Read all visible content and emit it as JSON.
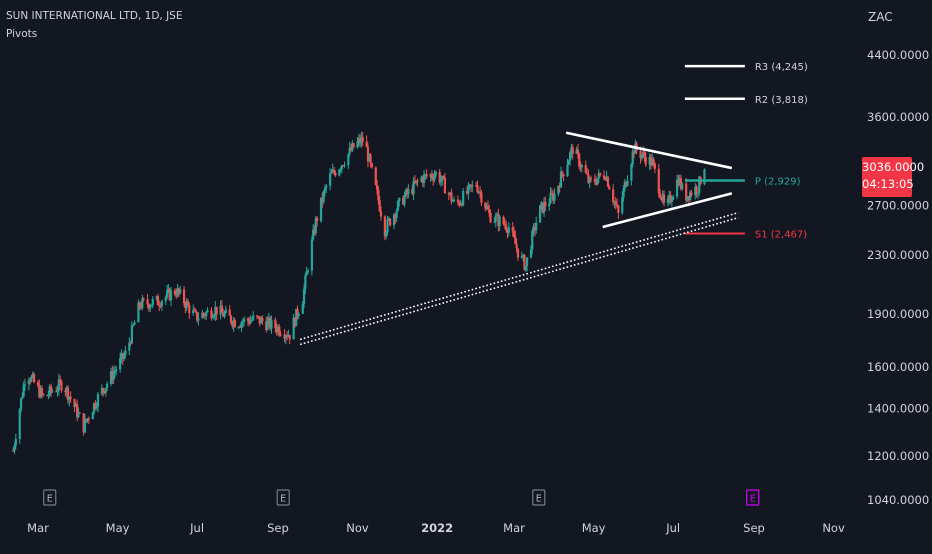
{
  "header": {
    "symbol_title": "SUN INTERNATIONAL LTD, 1D, JSE",
    "indicator": "Pivots",
    "currency": "ZAC"
  },
  "price_badge": {
    "price": "3036.0000",
    "countdown": "04:13:05",
    "color": "#f23645"
  },
  "colors": {
    "background": "#131722",
    "up": "#26a69a",
    "down": "#ef5350",
    "pivot": "#26a69a",
    "support": "#f23645",
    "resistance": "#ffffff",
    "trendline": "#ffffff",
    "earnings_marker": "#787b86",
    "earnings_marker_future": "#d500f9"
  },
  "chart_data": {
    "type": "candlestick",
    "title": "SUN INTERNATIONAL LTD, 1D, JSE",
    "indicator": "Pivots",
    "y_axis": {
      "unit": "ZAC",
      "scale": "log",
      "ticks": [
        "4400.0000",
        "3600.0000",
        "2700.0000",
        "2300.0000",
        "1900.0000",
        "1600.0000",
        "1400.0000",
        "1200.0000",
        "1040.0000"
      ],
      "tick_values": [
        4400,
        3600,
        2700,
        2300,
        1900,
        1600,
        1400,
        1200,
        1040
      ],
      "range": [
        990,
        5000
      ]
    },
    "x_axis": {
      "ticks": [
        "Mar",
        "May",
        "Jul",
        "Sep",
        "Nov",
        "2022",
        "Mar",
        "May",
        "Jul",
        "Sep",
        "Nov"
      ],
      "tick_dates": [
        "2021-03-01",
        "2021-05-01",
        "2021-07-01",
        "2021-09-01",
        "2021-11-01",
        "2022-01-01",
        "2022-03-01",
        "2022-05-01",
        "2022-07-01",
        "2022-09-01",
        "2022-11-01"
      ],
      "range": [
        "2021-02-10",
        "2022-12-10"
      ]
    },
    "series": [
      {
        "name": "",
        "anchors": [
          [
            "2021-02-10",
            1220
          ],
          [
            "2021-02-20",
            1580
          ],
          [
            "2021-03-05",
            1450
          ],
          [
            "2021-03-20",
            1520
          ],
          [
            "2021-04-05",
            1320
          ],
          [
            "2021-04-15",
            1440
          ],
          [
            "2021-04-25",
            1540
          ],
          [
            "2021-05-08",
            1680
          ],
          [
            "2021-05-18",
            1960
          ],
          [
            "2021-06-01",
            1980
          ],
          [
            "2021-06-15",
            2050
          ],
          [
            "2021-06-30",
            1880
          ],
          [
            "2021-07-15",
            1930
          ],
          [
            "2021-07-31",
            1850
          ],
          [
            "2021-08-15",
            1870
          ],
          [
            "2021-08-31",
            1820
          ],
          [
            "2021-09-10",
            1780
          ],
          [
            "2021-09-20",
            2000
          ],
          [
            "2021-09-30",
            2560
          ],
          [
            "2021-10-10",
            2950
          ],
          [
            "2021-10-20",
            3100
          ],
          [
            "2021-10-31",
            3300
          ],
          [
            "2021-11-06",
            3350
          ],
          [
            "2021-11-12",
            3000
          ],
          [
            "2021-11-22",
            2500
          ],
          [
            "2021-12-05",
            2750
          ],
          [
            "2021-12-20",
            2950
          ],
          [
            "2022-01-01",
            3000
          ],
          [
            "2022-01-15",
            2700
          ],
          [
            "2022-01-31",
            2900
          ],
          [
            "2022-02-10",
            2620
          ],
          [
            "2022-02-25",
            2520
          ],
          [
            "2022-03-05",
            2300
          ],
          [
            "2022-03-10",
            2220
          ],
          [
            "2022-03-20",
            2650
          ],
          [
            "2022-04-01",
            2800
          ],
          [
            "2022-04-15",
            3250
          ],
          [
            "2022-04-28",
            2900
          ],
          [
            "2022-05-10",
            3000
          ],
          [
            "2022-05-20",
            2620
          ],
          [
            "2022-06-01",
            3250
          ],
          [
            "2022-06-15",
            3100
          ],
          [
            "2022-06-25",
            2650
          ],
          [
            "2022-07-05",
            2950
          ],
          [
            "2022-07-10",
            2780
          ],
          [
            "2022-07-20",
            2870
          ],
          [
            "2022-07-25",
            3036
          ]
        ]
      }
    ],
    "pivot_levels": [
      {
        "name": "R3",
        "label": "R3 (4,245)",
        "value": 4245,
        "from": "2022-07-10",
        "to": "2022-08-25"
      },
      {
        "name": "R2",
        "label": "R2 (3,818)",
        "value": 3818,
        "from": "2022-07-10",
        "to": "2022-08-25"
      },
      {
        "name": "P",
        "label": "P (2,929)",
        "value": 2929,
        "from": "2022-07-10",
        "to": "2022-08-25"
      },
      {
        "name": "S1",
        "label": "S1 (2,467)",
        "value": 2467,
        "from": "2022-07-10",
        "to": "2022-08-25"
      }
    ],
    "trendlines": [
      {
        "name": "triangle-upper",
        "style": "solid",
        "from": [
          "2022-04-10",
          3420
        ],
        "to": [
          "2022-08-15",
          3050
        ]
      },
      {
        "name": "triangle-lower",
        "style": "solid",
        "from": [
          "2022-05-08",
          2520
        ],
        "to": [
          "2022-08-15",
          2810
        ]
      },
      {
        "name": "long-term-support",
        "style": "dotted",
        "from": [
          "2021-09-18",
          1750
        ],
        "to": [
          "2022-08-20",
          2640
        ]
      }
    ],
    "earnings_markers": [
      {
        "label": "E",
        "date": "2021-03-10",
        "future": false
      },
      {
        "label": "E",
        "date": "2021-09-05",
        "future": false
      },
      {
        "label": "E",
        "date": "2022-03-20",
        "future": false
      },
      {
        "label": "E",
        "date": "2022-08-31",
        "future": true
      }
    ]
  }
}
